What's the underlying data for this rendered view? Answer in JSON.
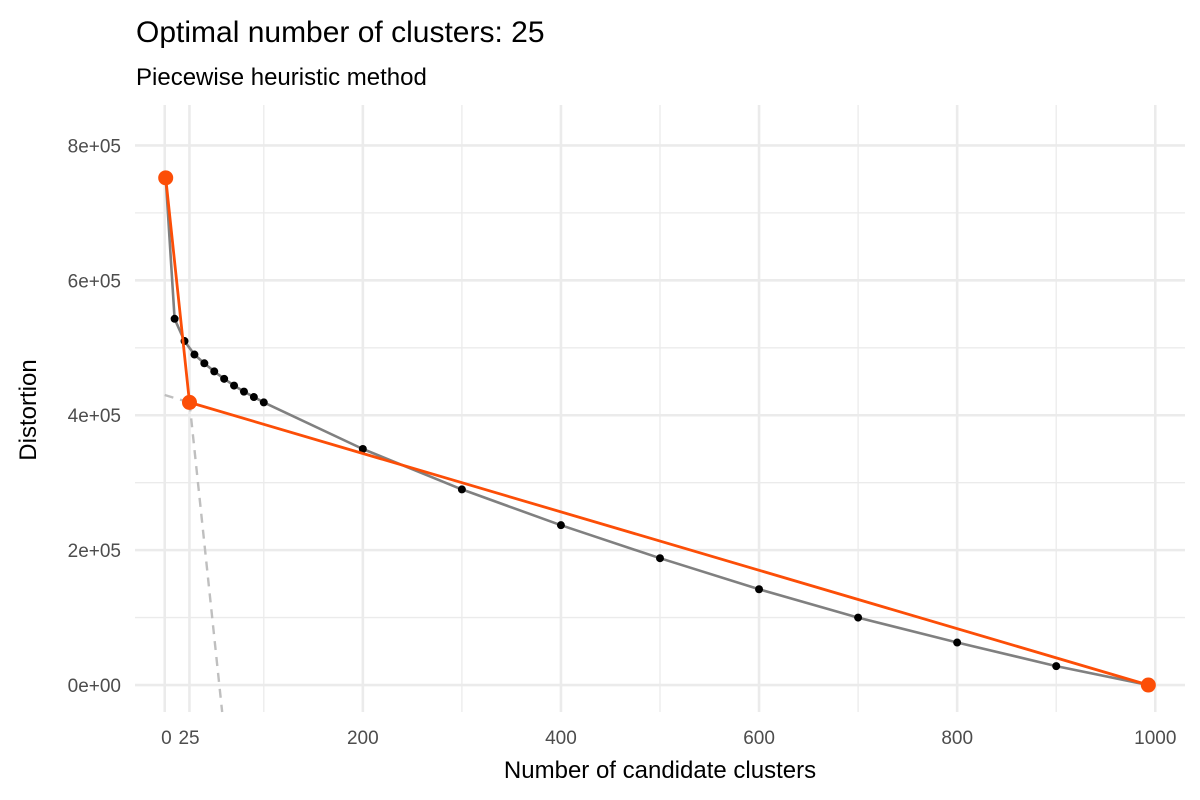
{
  "chart_data": {
    "type": "line",
    "title": "Optimal number of clusters: 25",
    "subtitle": "Piecewise heuristic method",
    "xlabel": "Number of candidate clusters",
    "ylabel": "Distortion",
    "xlim": [
      -30,
      1030
    ],
    "ylim": [
      -40000,
      860000
    ],
    "x_ticks": [
      {
        "value": 0,
        "label": "0"
      },
      {
        "value": 25,
        "label": "25"
      },
      {
        "value": 200,
        "label": "200"
      },
      {
        "value": 400,
        "label": "400"
      },
      {
        "value": 600,
        "label": "600"
      },
      {
        "value": 800,
        "label": "800"
      },
      {
        "value": 1000,
        "label": "1000"
      }
    ],
    "y_ticks": [
      {
        "value": 0,
        "label": "0e+00"
      },
      {
        "value": 200000,
        "label": "2e+05"
      },
      {
        "value": 400000,
        "label": "4e+05"
      },
      {
        "value": 600000,
        "label": "6e+05"
      },
      {
        "value": 800000,
        "label": "8e+05"
      }
    ],
    "grid": true,
    "series": [
      {
        "role": "distortion-curve",
        "color": "#808080",
        "point_color": "#000000",
        "x": [
          1,
          10,
          20,
          30,
          40,
          50,
          60,
          70,
          80,
          90,
          100,
          200,
          300,
          400,
          500,
          600,
          700,
          800,
          900,
          993
        ],
        "y": [
          752000,
          543000,
          510000,
          490000,
          477000,
          465000,
          454000,
          444000,
          435000,
          427000,
          419000,
          350000,
          290000,
          237000,
          188000,
          142000,
          100000,
          63000,
          28000,
          0
        ]
      },
      {
        "role": "piecewise-fit",
        "color": "#fc4e07",
        "x": [
          1,
          25,
          993
        ],
        "y": [
          752000,
          419000,
          0
        ]
      }
    ],
    "reference_lines": [
      {
        "role": "extended-right-segment",
        "color": "#bfbfbf",
        "dashed": true,
        "x": [
          0,
          25
        ],
        "y": [
          430000,
          419000
        ]
      },
      {
        "role": "extended-left-segment",
        "color": "#bfbfbf",
        "dashed": true,
        "x": [
          25,
          58
        ],
        "y": [
          419000,
          -40000
        ]
      }
    ]
  }
}
